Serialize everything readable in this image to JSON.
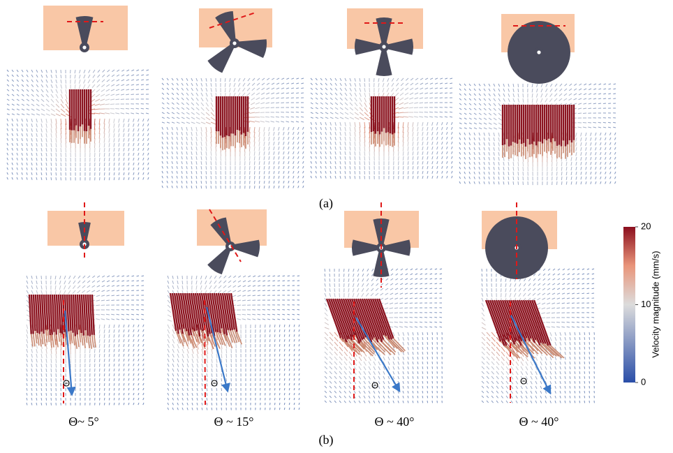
{
  "panel_labels": [
    "(a)",
    "(b)"
  ],
  "angle_labels": [
    "Θ~ 5°",
    "Θ ~ 15°",
    "Θ ~ 40°",
    "Θ ~ 40°"
  ],
  "theta_labels": [
    "Θ",
    "Θ",
    "Θ",
    "Θ"
  ],
  "colorbar": {
    "label": "Velocity magnitude (mm/s)",
    "lim": [
      0,
      20
    ],
    "ticks": [
      0,
      10,
      20
    ]
  }
}
